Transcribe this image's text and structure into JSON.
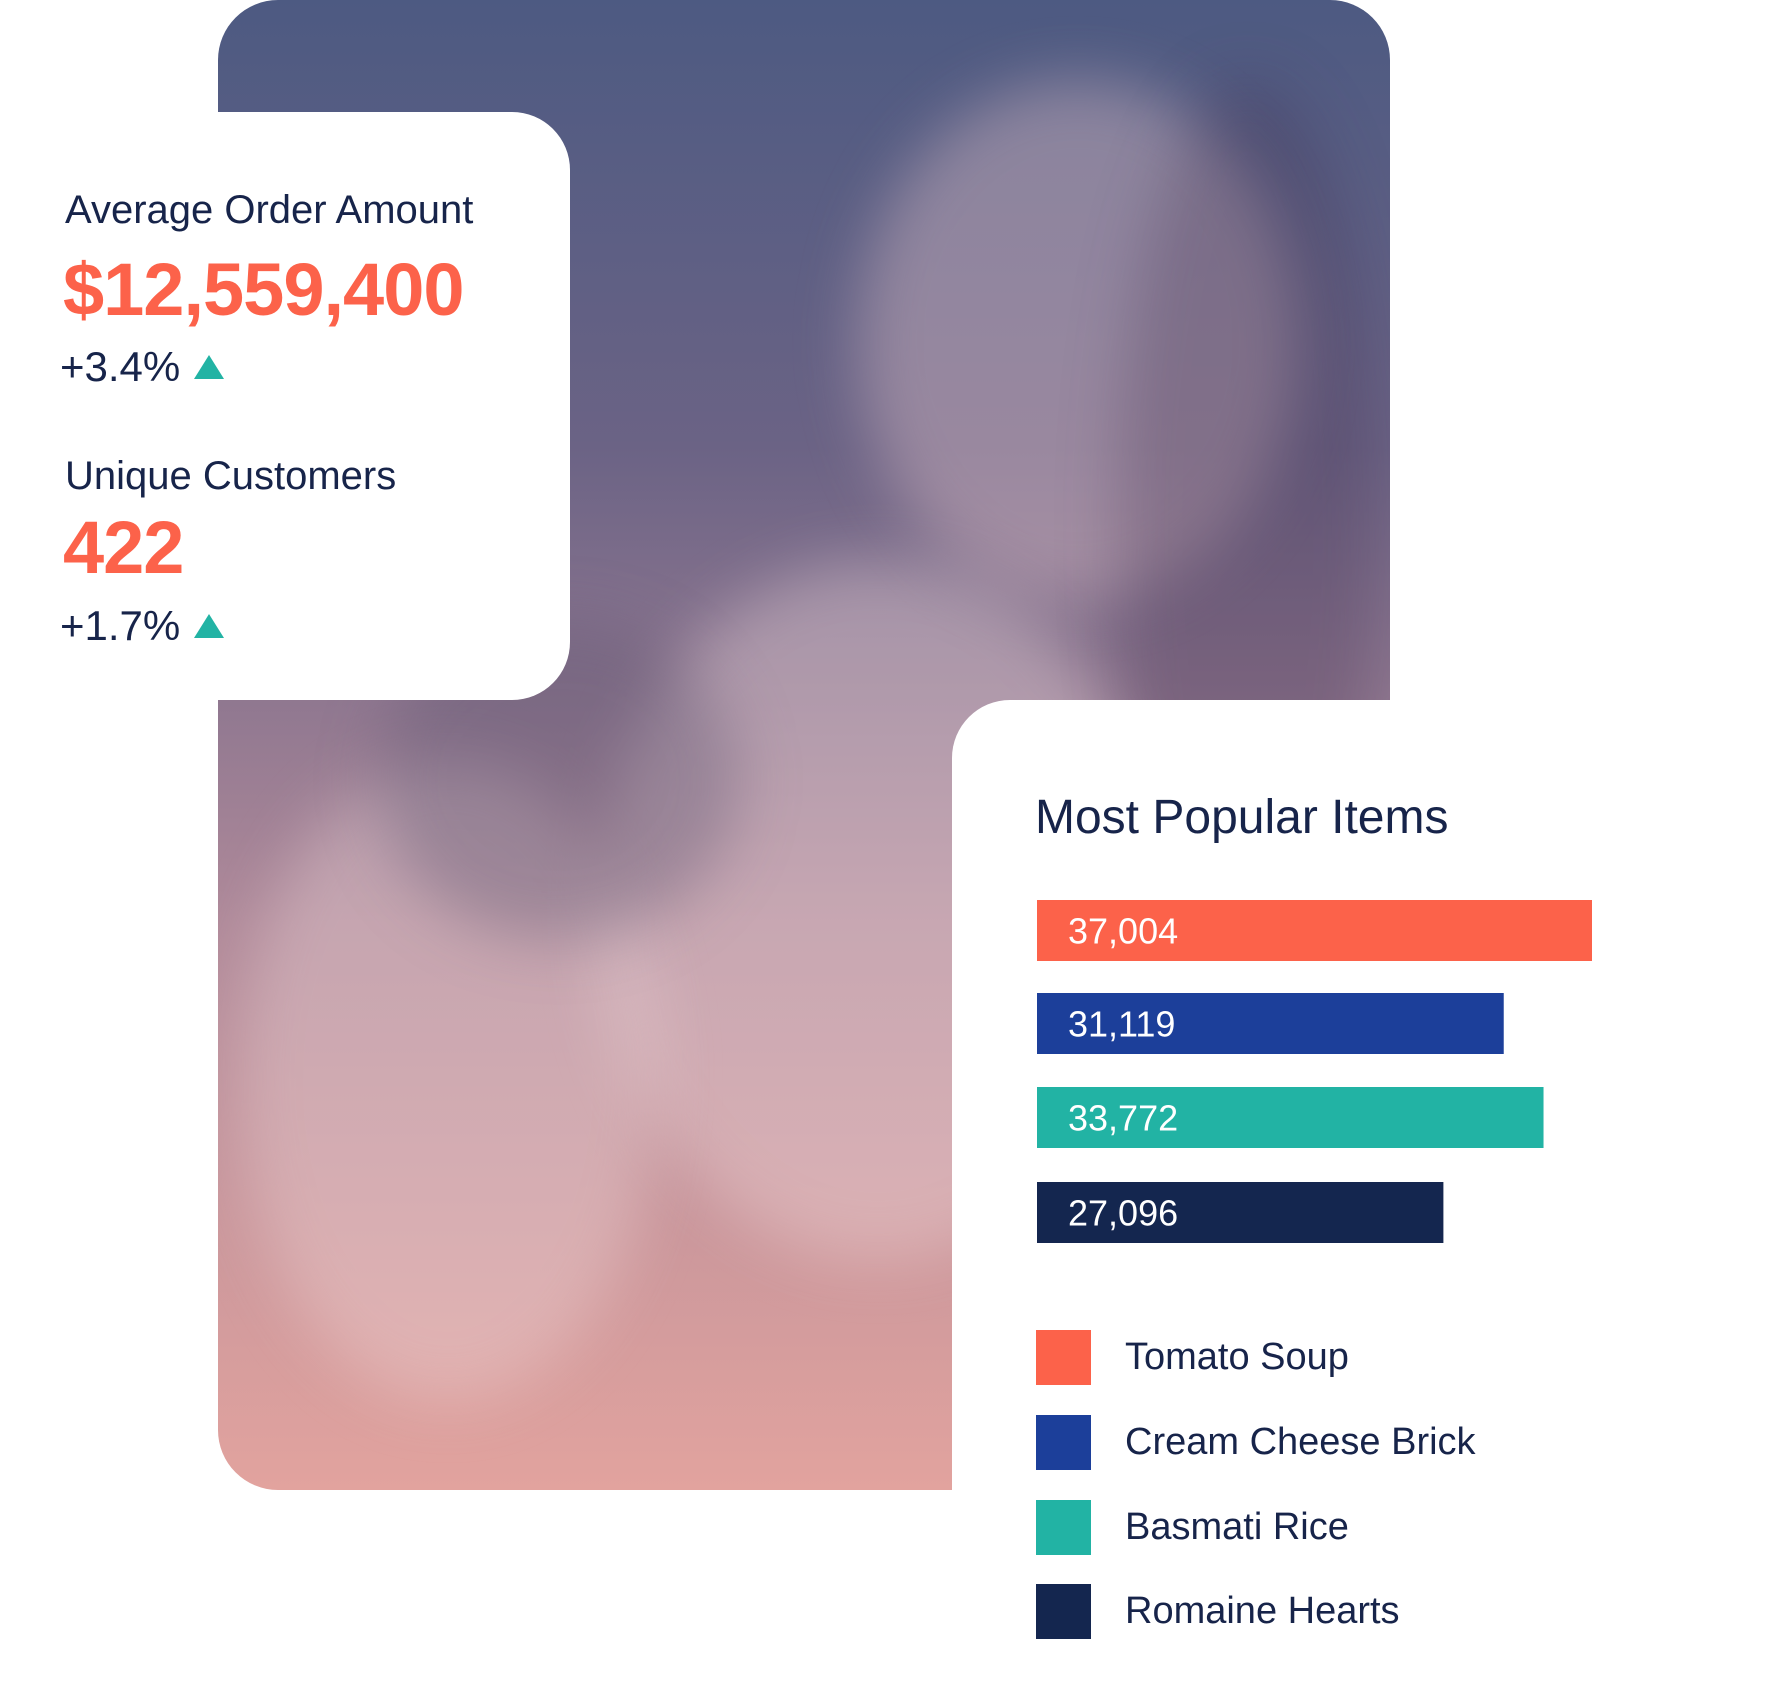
{
  "kpis": {
    "average_order": {
      "label": "Average Order Amount",
      "value": "$12,559,400",
      "change": "+3.4%"
    },
    "unique_customers": {
      "label": "Unique Customers",
      "value": "422",
      "change": "+1.7%"
    }
  },
  "colors": {
    "accent": "#fc624a",
    "navy": "#17244a",
    "blue": "#1c3f9a",
    "teal": "#22b3a4",
    "dark_navy": "#14264f"
  },
  "chart_data": {
    "type": "bar",
    "orientation": "horizontal",
    "title": "Most Popular Items",
    "categories": [
      "Tomato Soup",
      "Cream Cheese Brick",
      "Basmati Rice",
      "Romaine Hearts"
    ],
    "values": [
      37004,
      31119,
      33772,
      27096
    ],
    "value_labels": [
      "37,004",
      "31,119",
      "33,772",
      "27,096"
    ],
    "colors": [
      "#fc624a",
      "#1c3f9a",
      "#22b3a4",
      "#14264f"
    ],
    "legend_position": "bottom",
    "grid": false
  }
}
